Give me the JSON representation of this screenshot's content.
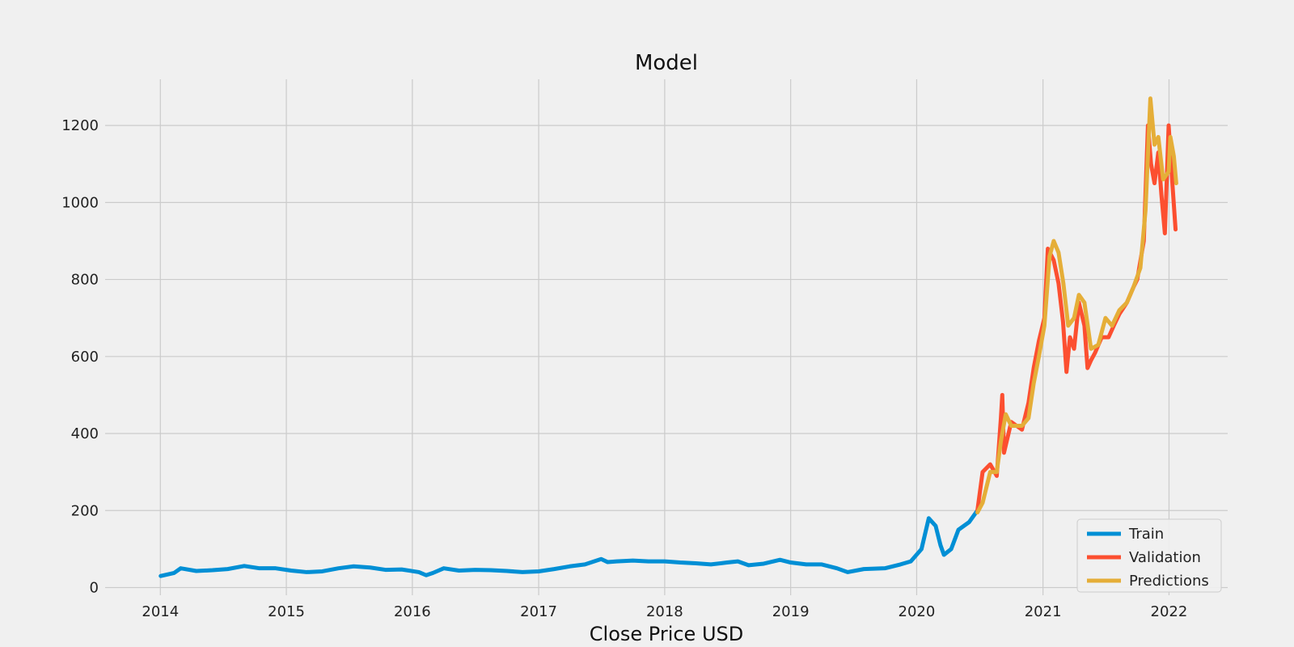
{
  "chart_data": {
    "type": "line",
    "title": "Model",
    "xlabel": "Close Price USD",
    "ylabel": "",
    "xlim": [
      "2013-07-25",
      "2022-06-20"
    ],
    "ylim": [
      -20,
      1320
    ],
    "x_ticks": [
      "2014",
      "2015",
      "2016",
      "2017",
      "2018",
      "2019",
      "2020",
      "2021",
      "2022"
    ],
    "y_ticks": [
      0,
      200,
      400,
      600,
      800,
      1000,
      1200
    ],
    "grid": true,
    "legend": {
      "placement": "lower-right",
      "entries": [
        "Train",
        "Validation",
        "Predictions"
      ]
    },
    "series": [
      {
        "name": "Train",
        "color": "#008fd5",
        "points": [
          [
            "2014-01-02",
            30
          ],
          [
            "2014-02-10",
            38
          ],
          [
            "2014-03-01",
            50
          ],
          [
            "2014-04-15",
            43
          ],
          [
            "2014-06-01",
            45
          ],
          [
            "2014-07-15",
            48
          ],
          [
            "2014-09-01",
            56
          ],
          [
            "2014-10-15",
            50
          ],
          [
            "2014-12-01",
            50
          ],
          [
            "2015-01-15",
            44
          ],
          [
            "2015-03-01",
            40
          ],
          [
            "2015-04-15",
            42
          ],
          [
            "2015-06-01",
            50
          ],
          [
            "2015-07-15",
            55
          ],
          [
            "2015-09-01",
            52
          ],
          [
            "2015-10-15",
            46
          ],
          [
            "2015-12-01",
            47
          ],
          [
            "2016-01-20",
            40
          ],
          [
            "2016-02-10",
            32
          ],
          [
            "2016-03-01",
            38
          ],
          [
            "2016-04-01",
            50
          ],
          [
            "2016-05-15",
            44
          ],
          [
            "2016-07-01",
            46
          ],
          [
            "2016-08-15",
            45
          ],
          [
            "2016-10-01",
            43
          ],
          [
            "2016-11-15",
            40
          ],
          [
            "2017-01-01",
            42
          ],
          [
            "2017-02-15",
            48
          ],
          [
            "2017-04-01",
            55
          ],
          [
            "2017-05-15",
            60
          ],
          [
            "2017-07-01",
            74
          ],
          [
            "2017-07-20",
            66
          ],
          [
            "2017-08-15",
            68
          ],
          [
            "2017-10-01",
            70
          ],
          [
            "2017-11-15",
            68
          ],
          [
            "2018-01-01",
            68
          ],
          [
            "2018-02-15",
            65
          ],
          [
            "2018-04-01",
            63
          ],
          [
            "2018-05-15",
            60
          ],
          [
            "2018-07-01",
            65
          ],
          [
            "2018-08-01",
            68
          ],
          [
            "2018-09-01",
            58
          ],
          [
            "2018-10-15",
            62
          ],
          [
            "2018-12-01",
            72
          ],
          [
            "2019-01-01",
            65
          ],
          [
            "2019-02-15",
            60
          ],
          [
            "2019-04-01",
            60
          ],
          [
            "2019-05-15",
            50
          ],
          [
            "2019-06-15",
            40
          ],
          [
            "2019-08-01",
            48
          ],
          [
            "2019-10-01",
            50
          ],
          [
            "2019-11-15",
            60
          ],
          [
            "2019-12-15",
            68
          ],
          [
            "2020-01-15",
            100
          ],
          [
            "2020-02-05",
            180
          ],
          [
            "2020-02-25",
            160
          ],
          [
            "2020-03-10",
            110
          ],
          [
            "2020-03-20",
            85
          ],
          [
            "2020-04-10",
            100
          ],
          [
            "2020-05-01",
            150
          ],
          [
            "2020-06-01",
            170
          ],
          [
            "2020-06-25",
            200
          ]
        ]
      },
      {
        "name": "Validation",
        "color": "#fc4f30",
        "points": [
          [
            "2020-06-25",
            200
          ],
          [
            "2020-07-10",
            300
          ],
          [
            "2020-08-01",
            320
          ],
          [
            "2020-08-20",
            290
          ],
          [
            "2020-09-01",
            440
          ],
          [
            "2020-09-05",
            500
          ],
          [
            "2020-09-10",
            350
          ],
          [
            "2020-10-01",
            430
          ],
          [
            "2020-11-01",
            410
          ],
          [
            "2020-11-20",
            480
          ],
          [
            "2020-12-05",
            570
          ],
          [
            "2020-12-20",
            640
          ],
          [
            "2021-01-05",
            700
          ],
          [
            "2021-01-15",
            880
          ],
          [
            "2021-02-01",
            850
          ],
          [
            "2021-02-15",
            790
          ],
          [
            "2021-02-28",
            690
          ],
          [
            "2021-03-10",
            560
          ],
          [
            "2021-03-20",
            650
          ],
          [
            "2021-04-01",
            620
          ],
          [
            "2021-04-15",
            740
          ],
          [
            "2021-05-01",
            680
          ],
          [
            "2021-05-10",
            570
          ],
          [
            "2021-05-20",
            590
          ],
          [
            "2021-06-01",
            610
          ],
          [
            "2021-06-20",
            650
          ],
          [
            "2021-07-10",
            650
          ],
          [
            "2021-07-25",
            680
          ],
          [
            "2021-08-10",
            710
          ],
          [
            "2021-09-01",
            740
          ],
          [
            "2021-09-20",
            780
          ],
          [
            "2021-10-01",
            800
          ],
          [
            "2021-10-20",
            900
          ],
          [
            "2021-11-01",
            1200
          ],
          [
            "2021-11-10",
            1100
          ],
          [
            "2021-11-20",
            1050
          ],
          [
            "2021-12-01",
            1130
          ],
          [
            "2021-12-10",
            1020
          ],
          [
            "2021-12-20",
            920
          ],
          [
            "2021-12-31",
            1200
          ],
          [
            "2022-01-10",
            1060
          ],
          [
            "2022-01-20",
            930
          ]
        ]
      },
      {
        "name": "Predictions",
        "color": "#e5ae38",
        "points": [
          [
            "2020-06-25",
            195
          ],
          [
            "2020-07-10",
            220
          ],
          [
            "2020-08-01",
            300
          ],
          [
            "2020-08-20",
            300
          ],
          [
            "2020-09-01",
            380
          ],
          [
            "2020-09-15",
            450
          ],
          [
            "2020-10-01",
            420
          ],
          [
            "2020-11-01",
            420
          ],
          [
            "2020-11-20",
            440
          ],
          [
            "2020-12-05",
            530
          ],
          [
            "2020-12-20",
            600
          ],
          [
            "2021-01-05",
            680
          ],
          [
            "2021-01-20",
            860
          ],
          [
            "2021-02-01",
            900
          ],
          [
            "2021-02-15",
            870
          ],
          [
            "2021-03-01",
            790
          ],
          [
            "2021-03-15",
            680
          ],
          [
            "2021-04-01",
            700
          ],
          [
            "2021-04-15",
            760
          ],
          [
            "2021-05-01",
            740
          ],
          [
            "2021-05-20",
            620
          ],
          [
            "2021-06-10",
            630
          ],
          [
            "2021-07-01",
            700
          ],
          [
            "2021-07-20",
            680
          ],
          [
            "2021-08-10",
            720
          ],
          [
            "2021-09-01",
            740
          ],
          [
            "2021-09-20",
            780
          ],
          [
            "2021-10-10",
            830
          ],
          [
            "2021-10-25",
            980
          ],
          [
            "2021-11-08",
            1270
          ],
          [
            "2021-11-20",
            1150
          ],
          [
            "2021-12-01",
            1170
          ],
          [
            "2021-12-15",
            1060
          ],
          [
            "2021-12-31",
            1080
          ],
          [
            "2022-01-05",
            1170
          ],
          [
            "2022-01-15",
            1120
          ],
          [
            "2022-01-22",
            1050
          ]
        ]
      }
    ]
  }
}
